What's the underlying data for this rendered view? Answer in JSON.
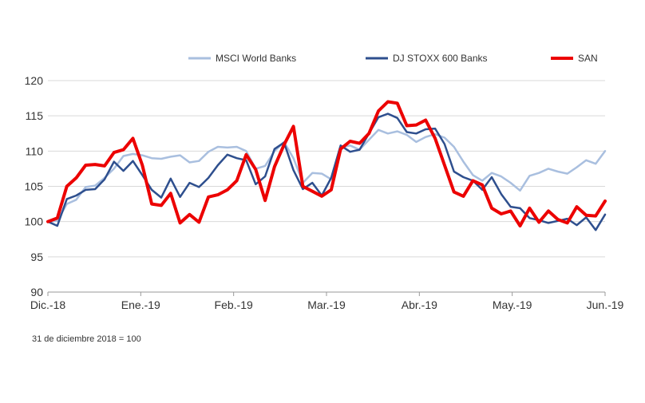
{
  "chart_data": {
    "type": "line",
    "title": "",
    "xlabel": "",
    "ylabel": "",
    "ylim": [
      90,
      120
    ],
    "yticks": [
      90,
      95,
      100,
      105,
      110,
      115,
      120
    ],
    "x_tick_labels": [
      "Dic.-18",
      "Ene.-19",
      "Feb.-19",
      "Mar.-19",
      "Abr.-19",
      "May.-19",
      "Jun.-19"
    ],
    "grid": "horizontal",
    "legend_position": "top",
    "note": "31 de diciembre 2018 = 100",
    "series": [
      {
        "name": "MSCI World Banks",
        "color": "#a9bfdf",
        "values": [
          100.0,
          100.1,
          102.5,
          103.1,
          104.9,
          105.1,
          106.2,
          107.5,
          109.3,
          109.6,
          109.4,
          109.0,
          108.9,
          109.2,
          109.4,
          108.4,
          108.6,
          109.9,
          110.6,
          110.5,
          110.6,
          110.0,
          107.5,
          107.9,
          110.0,
          111.3,
          109.0,
          105.5,
          106.9,
          106.8,
          106.0,
          110.5,
          110.8,
          110.2,
          111.6,
          113.0,
          112.5,
          112.8,
          112.3,
          111.3,
          112.0,
          112.4,
          111.9,
          110.6,
          108.5,
          106.6,
          105.8,
          106.9,
          106.4,
          105.5,
          104.4,
          106.5,
          106.9,
          107.5,
          107.1,
          106.8,
          107.7,
          108.7,
          108.2,
          110.0
        ]
      },
      {
        "name": "DJ STOXX 600 Banks",
        "color": "#2e4f8e",
        "values": [
          100.0,
          99.4,
          103.2,
          103.7,
          104.5,
          104.6,
          106.0,
          108.5,
          107.2,
          108.6,
          106.6,
          104.5,
          103.4,
          106.1,
          103.5,
          105.5,
          104.9,
          106.2,
          108.0,
          109.5,
          109.0,
          108.7,
          105.3,
          106.4,
          110.3,
          111.2,
          107.3,
          104.6,
          105.5,
          103.7,
          106.2,
          110.8,
          109.9,
          110.2,
          112.5,
          114.8,
          115.3,
          114.7,
          112.7,
          112.5,
          113.1,
          113.2,
          111.0,
          107.1,
          106.3,
          105.8,
          104.5,
          106.3,
          103.9,
          102.1,
          101.9,
          100.5,
          100.2,
          99.8,
          100.1,
          100.4,
          99.5,
          100.6,
          98.8,
          101.0
        ]
      },
      {
        "name": "SAN",
        "color": "#ec0000",
        "values": [
          100.0,
          100.5,
          105.0,
          106.2,
          108.0,
          108.1,
          107.9,
          109.8,
          110.2,
          111.8,
          108.0,
          102.5,
          102.3,
          104.0,
          99.8,
          101.0,
          99.9,
          103.5,
          103.8,
          104.5,
          105.8,
          109.5,
          107.4,
          103.0,
          107.8,
          110.9,
          113.5,
          105.0,
          104.3,
          103.6,
          104.5,
          110.3,
          111.4,
          111.1,
          112.5,
          115.7,
          117.0,
          116.8,
          113.6,
          113.7,
          114.4,
          111.8,
          108.0,
          104.2,
          103.6,
          105.8,
          105.2,
          101.9,
          101.1,
          101.5,
          99.4,
          101.9,
          99.9,
          101.5,
          100.3,
          99.8,
          102.1,
          100.9,
          100.8,
          102.9
        ]
      }
    ]
  }
}
